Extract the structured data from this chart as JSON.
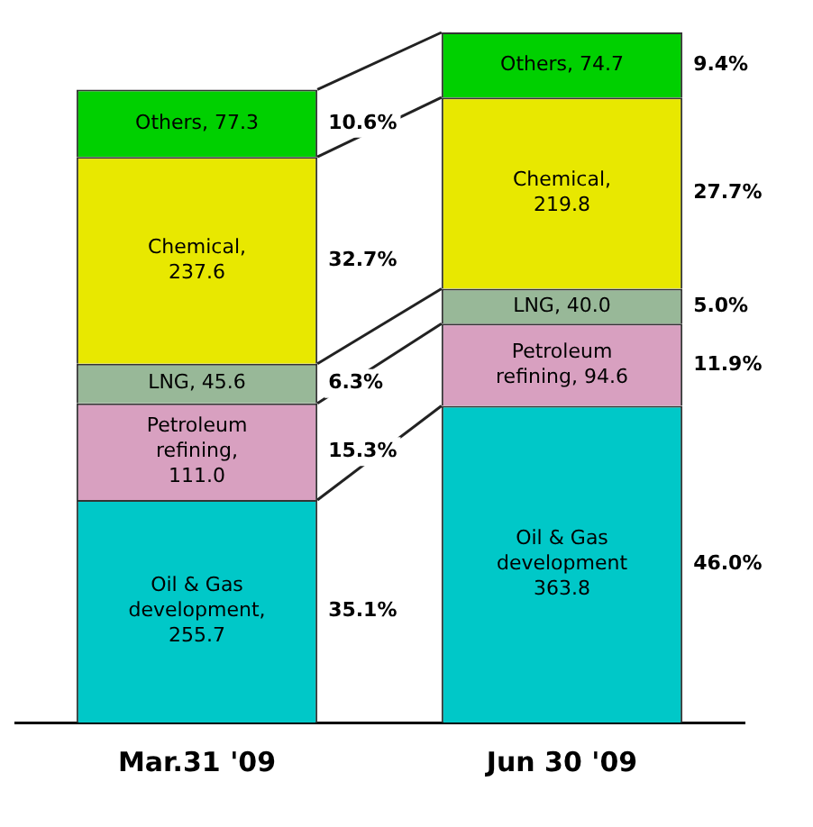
{
  "chart_data": {
    "type": "bar",
    "stacked": true,
    "categories": [
      "Mar.31 '09",
      "Jun 30 '09"
    ],
    "series": [
      {
        "color": "#00c8c8",
        "values": [
          255.7,
          363.8
        ],
        "value_labels": [
          "Oil & Gas\ndevelopment,\n255.7",
          "Oil & Gas\ndevelopment\n363.8"
        ]
      },
      {
        "color": "#d8a0c0",
        "values": [
          111.0,
          94.6
        ],
        "value_labels": [
          "Petroleum\nrefining,\n111.0",
          "Petroleum\nrefining, 94.6"
        ]
      },
      {
        "color": "#98b898",
        "values": [
          45.6,
          40.0
        ],
        "value_labels": [
          "LNG, 45.6",
          "LNG, 40.0"
        ]
      },
      {
        "color": "#e8e800",
        "values": [
          237.6,
          219.8
        ],
        "value_labels": [
          "Chemical,\n237.6",
          "Chemical,\n219.8"
        ]
      },
      {
        "color": "#00d000",
        "values": [
          77.3,
          74.7
        ],
        "value_labels": [
          "Others, 77.3",
          "Others, 74.7"
        ]
      }
    ],
    "annotations": [
      "35.1%",
      "15.3%",
      "6.3%",
      "32.7%",
      "10.6%",
      "46.0%",
      "11.9%",
      "5.0%",
      "27.7%",
      "9.4%"
    ],
    "grid": false,
    "legend": false
  }
}
